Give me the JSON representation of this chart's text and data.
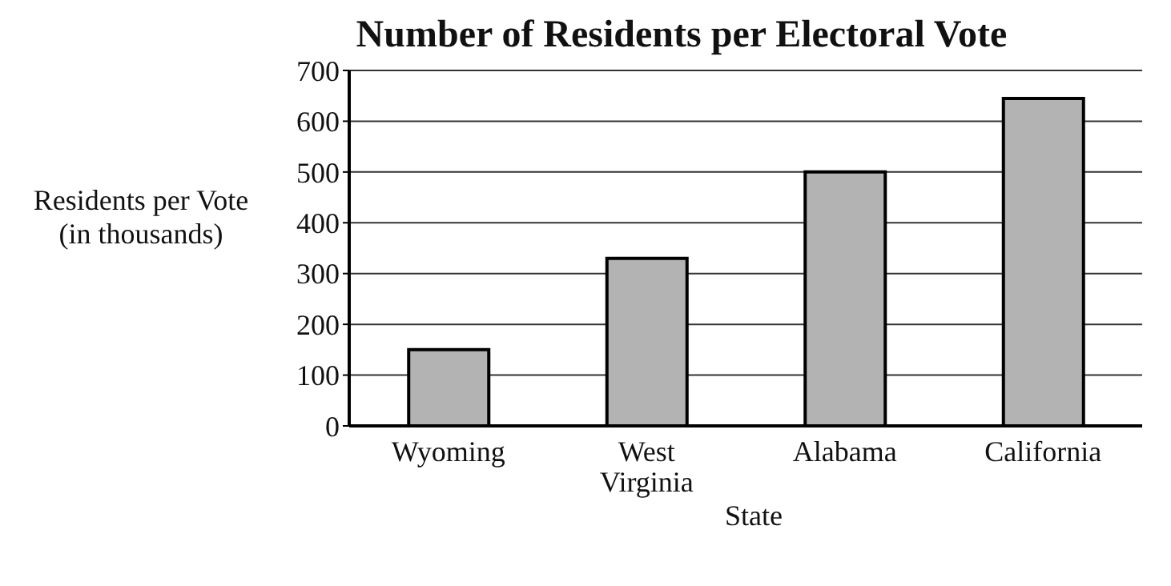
{
  "chart_data": {
    "type": "bar",
    "title": "Number of Residents per Electoral Vote",
    "xlabel": "State",
    "ylabel": "Residents per Vote (in thousands)",
    "categories": [
      "Wyoming",
      "West Virginia",
      "Alabama",
      "California"
    ],
    "values": [
      150,
      330,
      500,
      645
    ],
    "color": "#b3b3b3",
    "ylim": [
      0,
      700
    ],
    "yticks": [
      0,
      100,
      200,
      300,
      400,
      500,
      600,
      700
    ],
    "grid": "y"
  }
}
